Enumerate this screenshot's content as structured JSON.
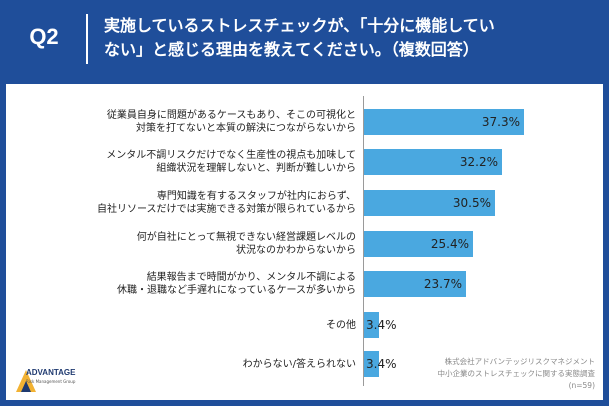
{
  "header": {
    "q_label": "Q2",
    "title_line1": "実施しているストレスチェックが、「十分に機能してい",
    "title_line2": "ない」と感じる理由を教えてください。（複数回答）"
  },
  "colors": {
    "frame": "#1f4e9a",
    "bar": "#4aa8e0"
  },
  "chart_data": {
    "type": "bar",
    "orientation": "horizontal",
    "unit": "%",
    "xlim": [
      0,
      40
    ],
    "categories": [
      [
        "従業員自身に問題があるケースもあり、そこの可視化と",
        "対策を打てないと本質の解決につながらないから"
      ],
      [
        "メンタル不調リスクだけでなく生産性の視点も加味して",
        "組織状況を理解しないと、判断が難しいから"
      ],
      [
        "専門知識を有するスタッフが社内におらず、",
        "自社リソースだけでは実施できる対策が限られているから"
      ],
      [
        "何が自社にとって無視できない経営課題レベルの",
        "状況なのかわからないから"
      ],
      [
        "結果報告まで時間がかり、メンタル不調による",
        "休職・退職など手遅れになっているケースが多いから"
      ],
      [
        "その他"
      ],
      [
        "わからない/答えられない"
      ]
    ],
    "values": [
      37.3,
      32.2,
      30.5,
      25.4,
      23.7,
      3.4,
      3.4
    ],
    "labels": [
      "37.3%",
      "32.2%",
      "30.5%",
      "25.4%",
      "23.7%",
      "3.4%",
      "3.4%"
    ]
  },
  "logo": {
    "name": "ADVANTAGE",
    "sub": "Risk Management Group"
  },
  "source": {
    "line1": "株式会社アドバンテッジリスクマネジメント",
    "line2": "中小企業のストレスチェックに関する実態調査",
    "line3": "(n=59)"
  }
}
